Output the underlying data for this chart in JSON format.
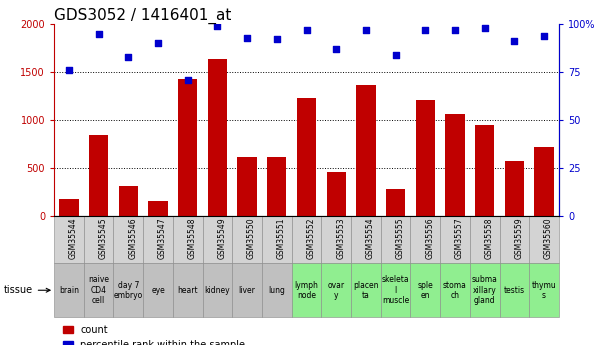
{
  "title": "GDS3052 / 1416401_at",
  "samples": [
    "GSM35544",
    "GSM35545",
    "GSM35546",
    "GSM35547",
    "GSM35548",
    "GSM35549",
    "GSM35550",
    "GSM35551",
    "GSM35552",
    "GSM35553",
    "GSM35554",
    "GSM35555",
    "GSM35556",
    "GSM35557",
    "GSM35558",
    "GSM35559",
    "GSM35560"
  ],
  "counts": [
    175,
    840,
    305,
    155,
    1430,
    1640,
    615,
    610,
    1230,
    460,
    1360,
    275,
    1210,
    1060,
    950,
    570,
    715
  ],
  "percentiles": [
    76,
    95,
    83,
    90,
    71,
    99,
    93,
    92,
    97,
    87,
    97,
    84,
    97,
    97,
    98,
    91,
    94
  ],
  "tissues": [
    "brain",
    "naive\nCD4\ncell",
    "day 7\nembryo",
    "eye",
    "heart",
    "kidney",
    "liver",
    "lung",
    "lymph\nnode",
    "ovar\ny",
    "placen\nta",
    "skeleta\nl\nmuscle",
    "sple\nen",
    "stoma\nch",
    "subma\nxillary\ngland",
    "testis",
    "thymu\ns"
  ],
  "tissue_colors": [
    "#c0c0c0",
    "#c0c0c0",
    "#c0c0c0",
    "#c0c0c0",
    "#c0c0c0",
    "#c0c0c0",
    "#c0c0c0",
    "#c0c0c0",
    "#90ee90",
    "#90ee90",
    "#90ee90",
    "#90ee90",
    "#90ee90",
    "#90ee90",
    "#90ee90",
    "#90ee90",
    "#90ee90"
  ],
  "sample_row_color": "#d3d3d3",
  "bar_color": "#c00000",
  "dot_color": "#0000cd",
  "ylim_left": [
    0,
    2000
  ],
  "ylim_right": [
    0,
    100
  ],
  "yticks_left": [
    0,
    500,
    1000,
    1500,
    2000
  ],
  "yticks_right": [
    0,
    25,
    50,
    75,
    100
  ],
  "ylabel_right_labels": [
    "0",
    "25",
    "50",
    "75",
    "100%"
  ],
  "background_color": "#ffffff",
  "grid_color": "#000000",
  "title_fontsize": 11,
  "sample_fontsize": 5.5,
  "tissue_fontsize": 5.5,
  "bar_width": 0.65
}
